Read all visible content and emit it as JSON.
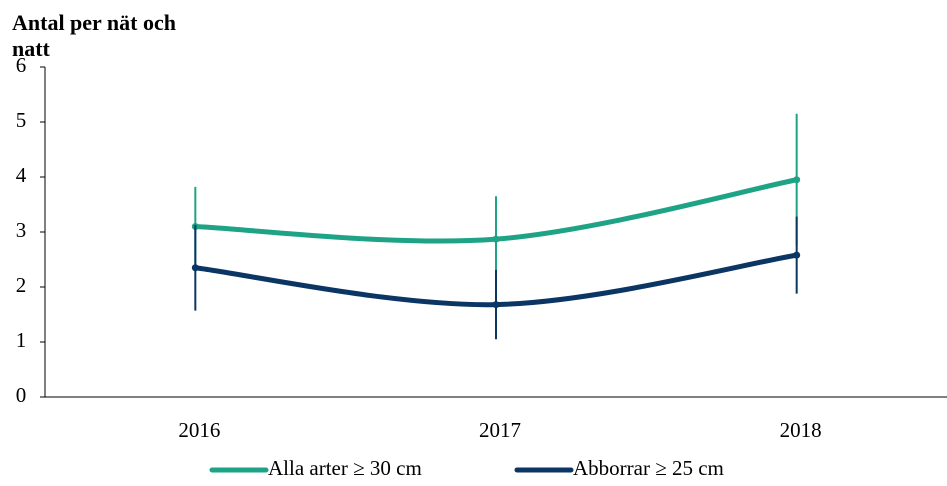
{
  "chart_data": {
    "type": "line",
    "y_label": "Antal per nät och natt",
    "categories": [
      "2016",
      "2017",
      "2018"
    ],
    "series": [
      {
        "name": "Alla arter ≥ 30 cm",
        "color": "#1fa386",
        "values": [
          3.1,
          2.87,
          3.95
        ],
        "errors": [
          0.72,
          0.78,
          1.2
        ]
      },
      {
        "name": "Abborrar ≥ 25 cm",
        "color": "#0b3563",
        "values": [
          2.35,
          1.68,
          2.58
        ],
        "errors": [
          0.78,
          0.63,
          0.7
        ]
      }
    ],
    "ylim": [
      0,
      6
    ],
    "yticks": [
      0,
      1,
      2,
      3,
      4,
      5,
      6
    ],
    "grid": false,
    "legend": "bottom"
  }
}
